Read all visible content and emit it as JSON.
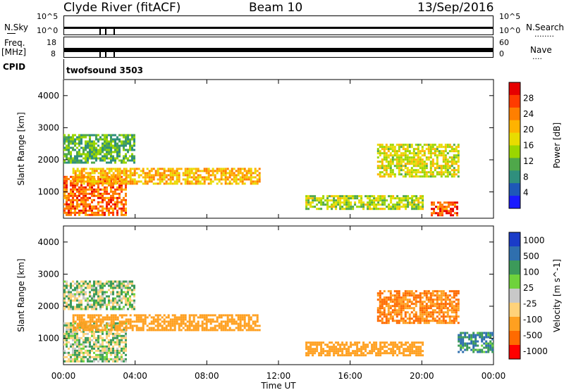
{
  "header": {
    "station": "Clyde River (fitACF)",
    "beam": "Beam 10",
    "date": "13/Sep/2016"
  },
  "side_labels": {
    "nsky": "N.Sky",
    "freq_top": "Freq.",
    "freq_bottom": "[MHz]",
    "cpid": "CPID",
    "nsearch": "N.Search",
    "nsearch_dots": "........",
    "nave": "Nave",
    "nave_dots": "....",
    "mode": "twofsound 3503"
  },
  "strip_ticks": {
    "nsky_left": [
      "10^5",
      "10^0"
    ],
    "nsearch_right": [
      "10^5",
      "10^0"
    ],
    "freq_left": [
      "18",
      "8"
    ],
    "nave_right": [
      "60",
      "0"
    ]
  },
  "chart_data": [
    {
      "type": "heatmap",
      "title": "Power",
      "ylabel": "Slant Range [km]",
      "ylim": [
        180,
        4500
      ],
      "y_ticks": [
        "1000",
        "2000",
        "3000",
        "4000"
      ],
      "colorbar_label": "Power [dB]",
      "colorbar_ticks": [
        "28",
        "24",
        "20",
        "16",
        "12",
        "8",
        "4"
      ],
      "colorbar_colors": [
        "#e60000",
        "#ff3b00",
        "#ff7f00",
        "#ffb300",
        "#e8dc00",
        "#9bd600",
        "#4fa84a",
        "#2f8f7d",
        "#1e58b8",
        "#1a1aff"
      ],
      "features": [
        {
          "t0": 0.0,
          "t1": 3.5,
          "r0": 300,
          "r1": 1500,
          "level": 25
        },
        {
          "t0": 0.5,
          "t1": 11.0,
          "r0": 1250,
          "r1": 1750,
          "level": 20
        },
        {
          "t0": 0.0,
          "t1": 4.0,
          "r0": 1900,
          "r1": 2800,
          "level": 10
        },
        {
          "t0": 13.5,
          "t1": 20.0,
          "r0": 500,
          "r1": 900,
          "level": 14
        },
        {
          "t0": 17.5,
          "t1": 22.0,
          "r0": 1500,
          "r1": 2500,
          "level": 16
        },
        {
          "t0": 20.5,
          "t1": 22.0,
          "r0": 300,
          "r1": 700,
          "level": 26
        }
      ]
    },
    {
      "type": "heatmap",
      "title": "Velocity",
      "ylabel": "Slant Range [km]",
      "ylim": [
        180,
        4500
      ],
      "y_ticks": [
        "1000",
        "2000",
        "3000",
        "4000"
      ],
      "xlabel": "Time UT",
      "x_ticks": [
        "00:00",
        "04:00",
        "08:00",
        "12:00",
        "16:00",
        "20:00",
        "00:00"
      ],
      "colorbar_label": "Velocity [m s^-1]",
      "colorbar_ticks": [
        "1000",
        "500",
        "100",
        "25",
        "-25",
        "-100",
        "-500",
        "-1000"
      ],
      "colorbar_colors": [
        "#1a3cc8",
        "#2f6fae",
        "#3c9a5a",
        "#6fd23c",
        "#c8c8c8",
        "#ffd27a",
        "#ffa020",
        "#ff6a00",
        "#ff0000"
      ],
      "features": [
        {
          "t0": 0.0,
          "t1": 3.5,
          "r0": 300,
          "r1": 1500,
          "vel": 0
        },
        {
          "t0": 0.5,
          "t1": 11.0,
          "r0": 1250,
          "r1": 1750,
          "vel": -300
        },
        {
          "t0": 0.0,
          "t1": 4.0,
          "r0": 1900,
          "r1": 2800,
          "vel": 0
        },
        {
          "t0": 13.5,
          "t1": 20.0,
          "r0": 500,
          "r1": 900,
          "vel": -400
        },
        {
          "t0": 17.5,
          "t1": 22.0,
          "r0": 1500,
          "r1": 2500,
          "vel": -500
        },
        {
          "t0": 22.0,
          "t1": 24.0,
          "r0": 600,
          "r1": 1200,
          "vel": 100
        }
      ]
    }
  ]
}
